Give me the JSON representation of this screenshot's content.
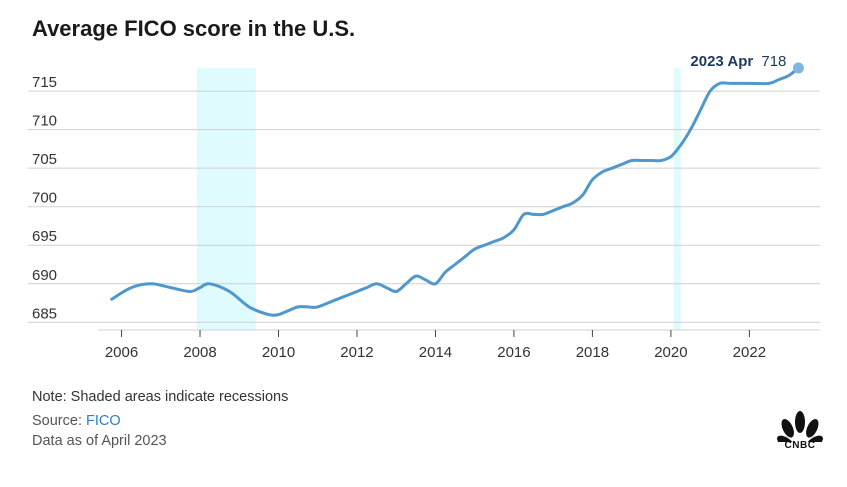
{
  "title": "Average FICO score in the U.S.",
  "notes": {
    "shading": "Note: Shaded areas indicate recessions",
    "source_prefix": "Source: ",
    "source_name": "FICO",
    "data_as_of": "Data as of April 2023"
  },
  "logo": {
    "text": "CNBC",
    "icon": "peacock-logo-icon"
  },
  "colors": {
    "line": "#4f97cc",
    "recession": "#dffbfd",
    "grid": "#d0d0d0",
    "point": "#7eb6e0"
  },
  "chart_data": {
    "type": "line",
    "title": "Average FICO score in the U.S.",
    "xlabel": "",
    "ylabel": "",
    "xlim": [
      2005.4,
      2023.8
    ],
    "ylim": [
      684,
      718
    ],
    "x_ticks": [
      2006,
      2008,
      2010,
      2012,
      2014,
      2016,
      2018,
      2020,
      2022
    ],
    "x_tick_labels": [
      "2006",
      "2008",
      "2010",
      "2012",
      "2014",
      "2016",
      "2018",
      "2020",
      "2022"
    ],
    "y_ticks": [
      685,
      690,
      695,
      700,
      705,
      710,
      715
    ],
    "y_tick_labels": [
      "685",
      "690",
      "695",
      "700",
      "705",
      "710",
      "715"
    ],
    "grid": "horizontal",
    "recessions": [
      [
        2007.92,
        2009.42
      ],
      [
        2020.08,
        2020.25
      ]
    ],
    "series": [
      {
        "x": [
          2005.75,
          2006.25,
          2006.75,
          2007.25,
          2007.75,
          2008.0,
          2008.25,
          2008.75,
          2009.25,
          2009.75,
          2010.0,
          2010.25,
          2010.5,
          2010.75,
          2011.0,
          2011.5,
          2012.0,
          2012.25,
          2012.5,
          2012.75,
          2013.0,
          2013.25,
          2013.5,
          2013.75,
          2014.0,
          2014.25,
          2014.5,
          2014.75,
          2015.0,
          2015.25,
          2015.5,
          2015.75,
          2016.0,
          2016.25,
          2016.5,
          2016.75,
          2017.0,
          2017.25,
          2017.5,
          2017.75,
          2018.0,
          2018.25,
          2018.5,
          2018.75,
          2019.0,
          2019.25,
          2019.5,
          2019.75,
          2020.0,
          2020.25,
          2020.5,
          2020.75,
          2021.0,
          2021.25,
          2021.5,
          2022.0,
          2022.5,
          2022.75,
          2023.0,
          2023.25
        ],
        "values": [
          688,
          689.5,
          690,
          689.5,
          689,
          689.5,
          690,
          689,
          687,
          686,
          686,
          686.5,
          687,
          687,
          687,
          688,
          689,
          689.5,
          690,
          689.5,
          689,
          690,
          691,
          690.5,
          690,
          691.5,
          692.5,
          693.5,
          694.5,
          695,
          695.5,
          696,
          697,
          699,
          699,
          699,
          699.5,
          700,
          700.5,
          701.5,
          703.5,
          704.5,
          705,
          705.5,
          706,
          706,
          706,
          706,
          706.5,
          708,
          710,
          712.5,
          715,
          716,
          716,
          716,
          716,
          716.5,
          717,
          718
        ]
      }
    ],
    "annotation": {
      "label": "2023 Apr",
      "value": "718"
    }
  }
}
